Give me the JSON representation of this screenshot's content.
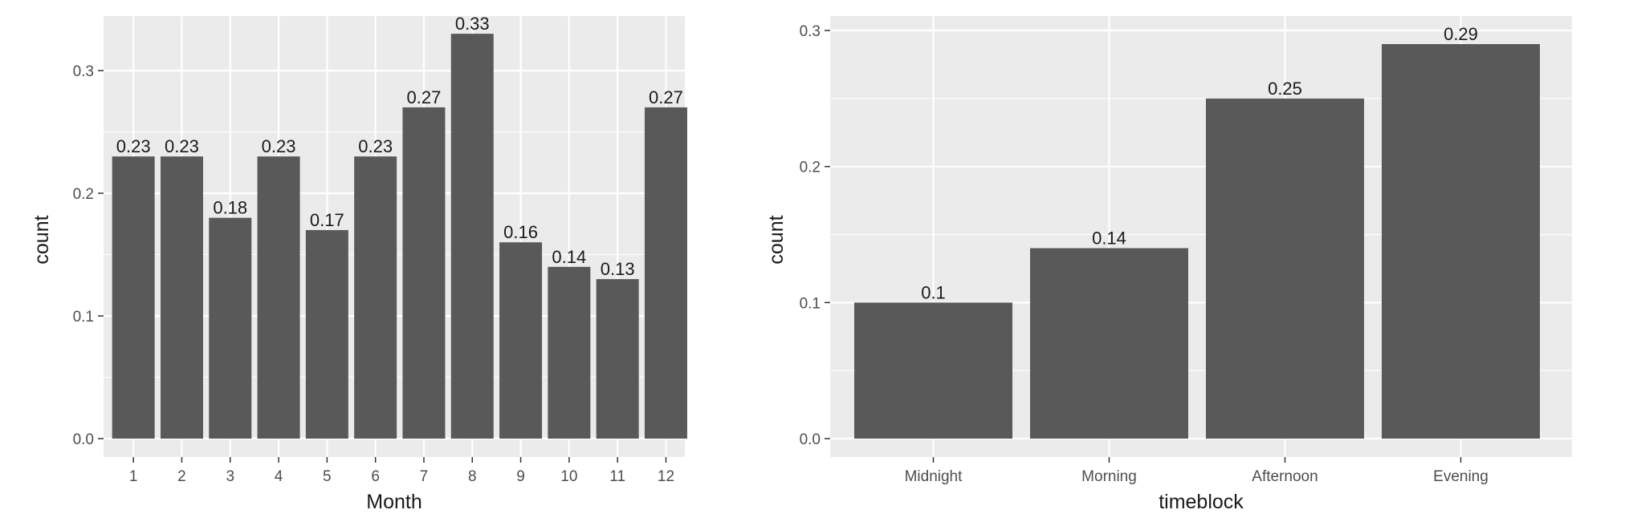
{
  "chart_data": [
    {
      "type": "bar",
      "title": "",
      "xlabel": "Month",
      "ylabel": "count",
      "categories": [
        "1",
        "2",
        "3",
        "4",
        "5",
        "6",
        "7",
        "8",
        "9",
        "10",
        "11",
        "12"
      ],
      "values": [
        0.23,
        0.23,
        0.18,
        0.23,
        0.17,
        0.23,
        0.27,
        0.33,
        0.16,
        0.14,
        0.13,
        0.27
      ],
      "data_labels": [
        "0.23",
        "0.23",
        "0.18",
        "0.23",
        "0.17",
        "0.23",
        "0.27",
        "0.33",
        "0.16",
        "0.14",
        "0.13",
        "0.27"
      ],
      "ylim": [
        0,
        0.33
      ],
      "yticks": [
        0.0,
        0.1,
        0.2,
        0.3
      ],
      "ytick_labels": [
        "0.0",
        "0.1",
        "0.2",
        "0.3"
      ],
      "grid": true,
      "legend": "none",
      "colors": {
        "bar": "#595959",
        "panel": "#EBEBEB",
        "grid": "#FFFFFF"
      }
    },
    {
      "type": "bar",
      "title": "",
      "xlabel": "timeblock",
      "ylabel": "count",
      "categories": [
        "Midnight",
        "Morning",
        "Afternoon",
        "Evening"
      ],
      "values": [
        0.1,
        0.14,
        0.25,
        0.29
      ],
      "data_labels": [
        "0.1",
        "0.14",
        "0.25",
        "0.29"
      ],
      "ylim": [
        0,
        0.29
      ],
      "yticks": [
        0.0,
        0.1,
        0.2,
        0.3
      ],
      "ytick_labels": [
        "0.0",
        "0.1",
        "0.2",
        "0.3"
      ],
      "grid": true,
      "legend": "none",
      "colors": {
        "bar": "#595959",
        "panel": "#EBEBEB",
        "grid": "#FFFFFF"
      }
    }
  ]
}
